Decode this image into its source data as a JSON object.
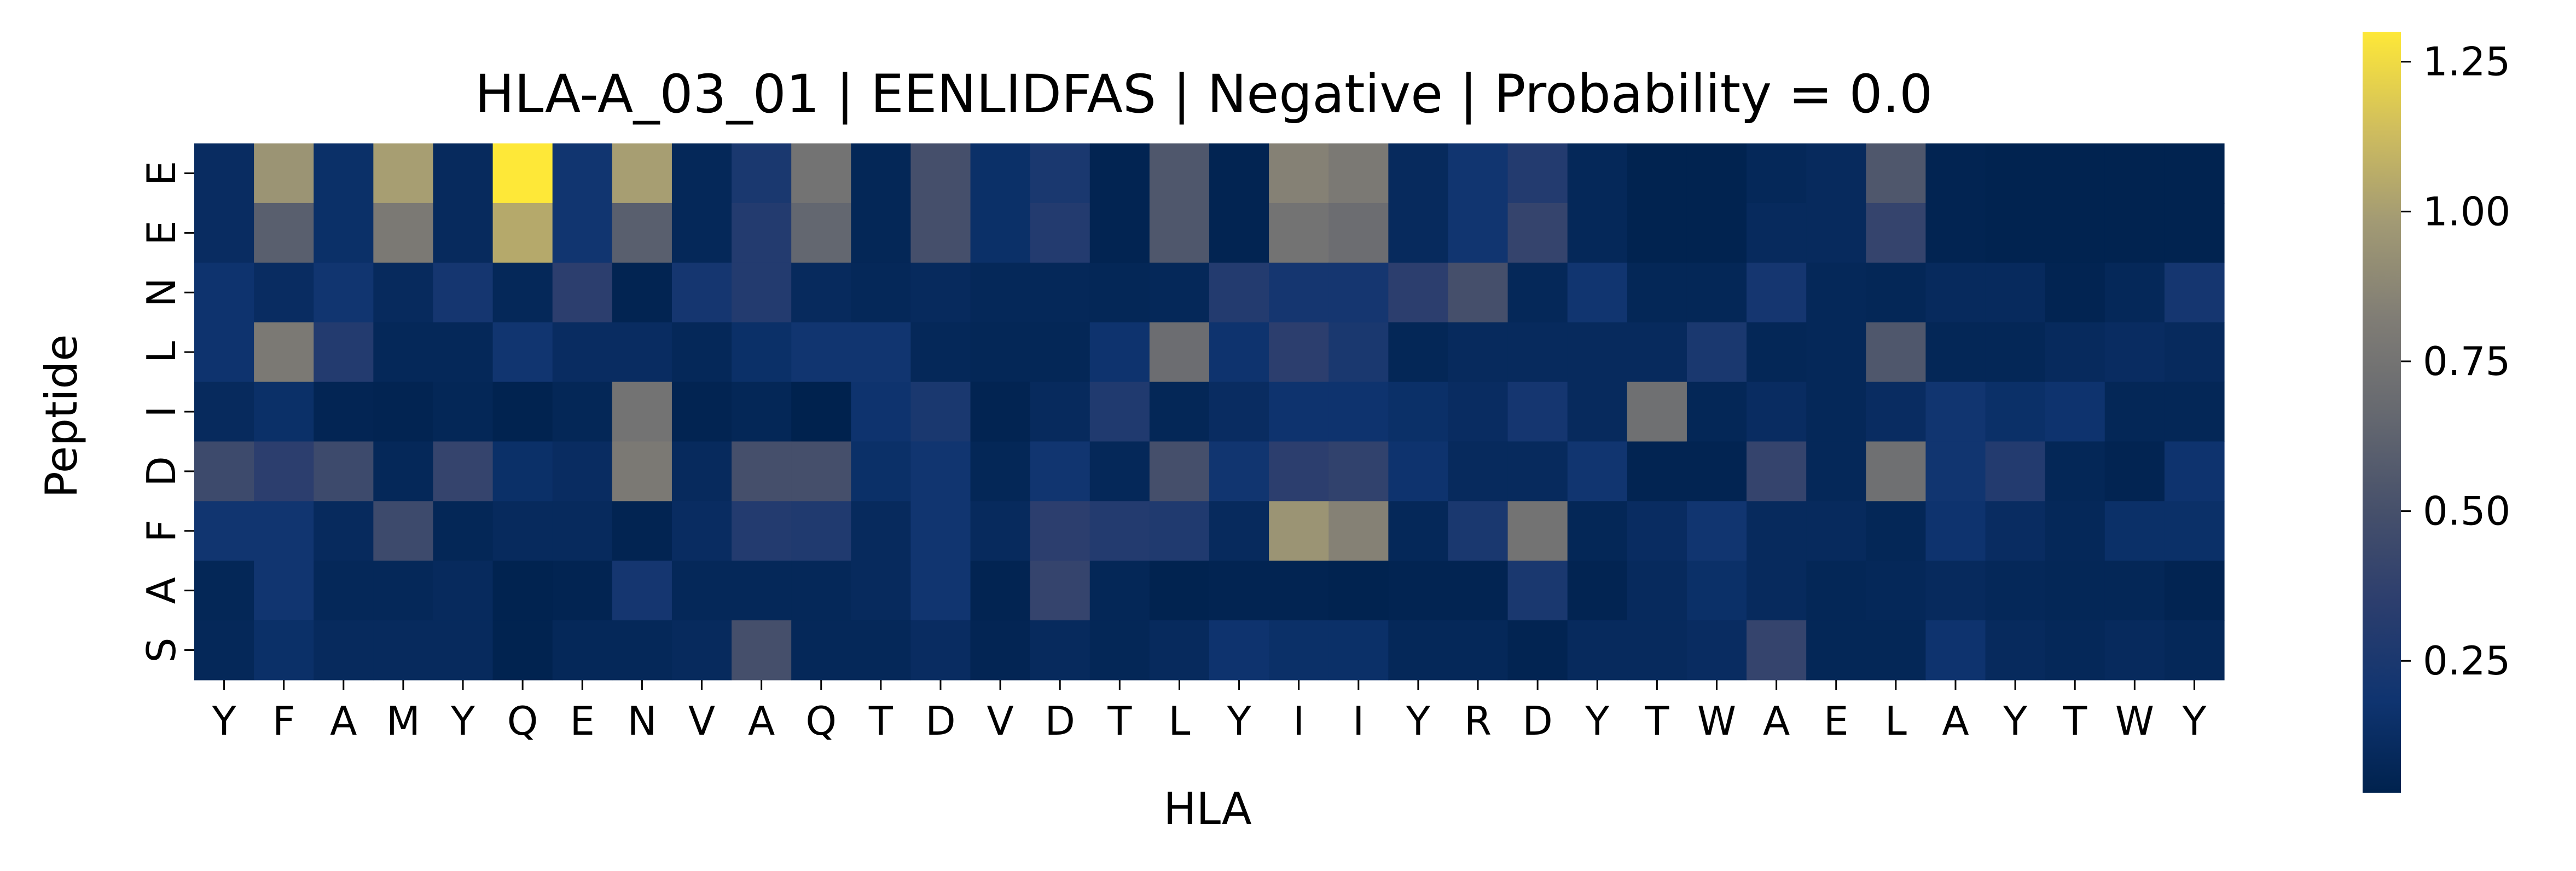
{
  "chart_data": {
    "type": "heatmap",
    "title": "HLA-A_03_01 | EENLIDFAS | Negative | Probability = 0.0",
    "xlabel": "HLA",
    "ylabel": "Peptide",
    "x_categories": [
      "Y",
      "F",
      "A",
      "M",
      "Y",
      "Q",
      "E",
      "N",
      "V",
      "A",
      "Q",
      "T",
      "D",
      "V",
      "D",
      "T",
      "L",
      "Y",
      "I",
      "I",
      "Y",
      "R",
      "D",
      "Y",
      "T",
      "W",
      "A",
      "E",
      "L",
      "A",
      "Y",
      "T",
      "W",
      "Y"
    ],
    "y_categories": [
      "E",
      "E",
      "N",
      "L",
      "I",
      "D",
      "F",
      "A",
      "S"
    ],
    "colormap": "cividis",
    "vmin": 0.03,
    "vmax": 1.3,
    "colorbar_ticks": [
      0.25,
      0.5,
      0.75,
      1.0,
      1.25
    ],
    "colorbar_tick_labels": [
      "0.25",
      "0.50",
      "0.75",
      "1.00",
      "1.25"
    ],
    "values": [
      [
        0.12,
        0.95,
        0.15,
        1.0,
        0.1,
        1.3,
        0.2,
        1.0,
        0.08,
        0.25,
        0.75,
        0.07,
        0.5,
        0.15,
        0.25,
        0.05,
        0.55,
        0.05,
        0.85,
        0.8,
        0.1,
        0.2,
        0.3,
        0.08,
        0.04,
        0.04,
        0.08,
        0.1,
        0.55,
        0.05,
        0.04,
        0.04,
        0.04,
        0.04
      ],
      [
        0.12,
        0.6,
        0.15,
        0.8,
        0.1,
        1.05,
        0.2,
        0.6,
        0.08,
        0.3,
        0.65,
        0.07,
        0.5,
        0.15,
        0.3,
        0.05,
        0.55,
        0.05,
        0.75,
        0.7,
        0.1,
        0.2,
        0.4,
        0.08,
        0.04,
        0.04,
        0.1,
        0.1,
        0.4,
        0.05,
        0.04,
        0.04,
        0.04,
        0.04
      ],
      [
        0.18,
        0.12,
        0.2,
        0.1,
        0.22,
        0.08,
        0.35,
        0.05,
        0.22,
        0.3,
        0.1,
        0.08,
        0.1,
        0.08,
        0.08,
        0.07,
        0.08,
        0.3,
        0.22,
        0.22,
        0.35,
        0.5,
        0.08,
        0.2,
        0.07,
        0.07,
        0.22,
        0.08,
        0.07,
        0.1,
        0.1,
        0.05,
        0.08,
        0.22
      ],
      [
        0.18,
        0.8,
        0.3,
        0.08,
        0.08,
        0.2,
        0.12,
        0.12,
        0.08,
        0.15,
        0.2,
        0.2,
        0.08,
        0.07,
        0.07,
        0.18,
        0.7,
        0.18,
        0.35,
        0.25,
        0.07,
        0.1,
        0.1,
        0.1,
        0.1,
        0.25,
        0.07,
        0.08,
        0.55,
        0.07,
        0.07,
        0.1,
        0.12,
        0.1
      ],
      [
        0.1,
        0.15,
        0.06,
        0.05,
        0.07,
        0.04,
        0.07,
        0.75,
        0.05,
        0.07,
        0.03,
        0.18,
        0.25,
        0.05,
        0.1,
        0.28,
        0.07,
        0.12,
        0.18,
        0.18,
        0.15,
        0.12,
        0.22,
        0.1,
        0.72,
        0.07,
        0.12,
        0.08,
        0.12,
        0.2,
        0.15,
        0.18,
        0.07,
        0.07
      ],
      [
        0.45,
        0.35,
        0.45,
        0.08,
        0.4,
        0.15,
        0.12,
        0.8,
        0.1,
        0.5,
        0.5,
        0.15,
        0.2,
        0.07,
        0.2,
        0.08,
        0.5,
        0.2,
        0.35,
        0.38,
        0.18,
        0.1,
        0.1,
        0.2,
        0.05,
        0.05,
        0.4,
        0.08,
        0.72,
        0.2,
        0.3,
        0.07,
        0.05,
        0.18
      ],
      [
        0.2,
        0.2,
        0.1,
        0.45,
        0.07,
        0.1,
        0.1,
        0.05,
        0.12,
        0.3,
        0.28,
        0.1,
        0.2,
        0.1,
        0.35,
        0.3,
        0.28,
        0.1,
        0.95,
        0.85,
        0.08,
        0.25,
        0.75,
        0.07,
        0.12,
        0.2,
        0.1,
        0.1,
        0.07,
        0.18,
        0.12,
        0.08,
        0.15,
        0.15
      ],
      [
        0.07,
        0.2,
        0.08,
        0.08,
        0.1,
        0.04,
        0.05,
        0.22,
        0.08,
        0.08,
        0.08,
        0.1,
        0.2,
        0.05,
        0.4,
        0.07,
        0.04,
        0.05,
        0.05,
        0.04,
        0.05,
        0.05,
        0.25,
        0.05,
        0.1,
        0.15,
        0.1,
        0.07,
        0.08,
        0.1,
        0.08,
        0.07,
        0.07,
        0.05
      ],
      [
        0.08,
        0.15,
        0.1,
        0.1,
        0.1,
        0.04,
        0.08,
        0.08,
        0.1,
        0.5,
        0.08,
        0.08,
        0.12,
        0.06,
        0.1,
        0.07,
        0.1,
        0.18,
        0.15,
        0.15,
        0.08,
        0.08,
        0.05,
        0.1,
        0.1,
        0.12,
        0.4,
        0.07,
        0.07,
        0.18,
        0.1,
        0.08,
        0.1,
        0.08
      ]
    ]
  }
}
